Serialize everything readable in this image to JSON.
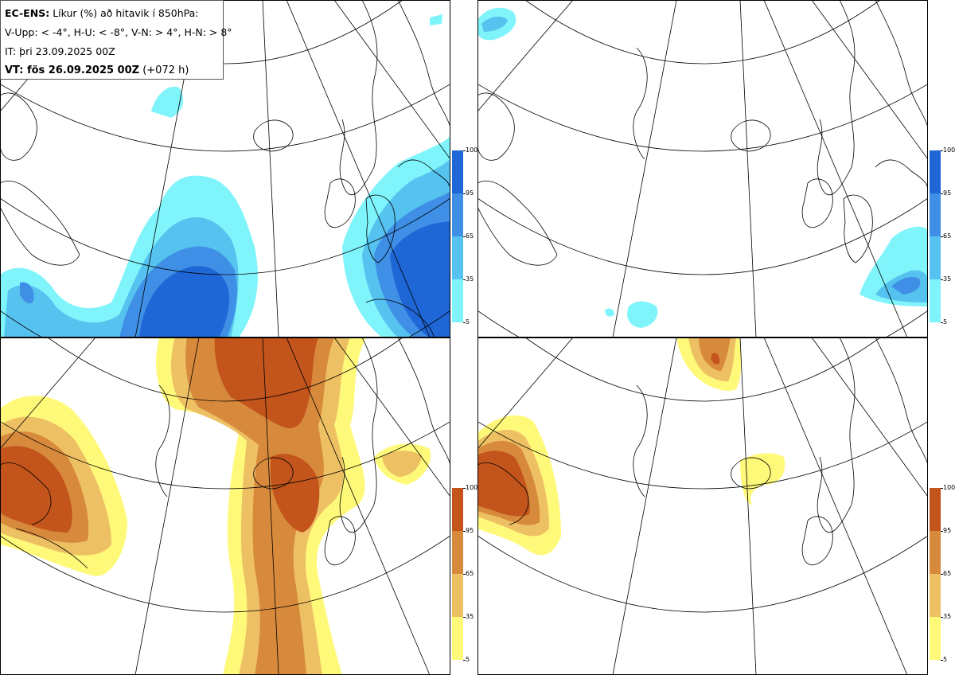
{
  "title": {
    "model": "EC-ENS:",
    "description": "Líkur (%) að hitavik í 850hPa:",
    "thresholds": "V-Upp: < -4°, H-U: < -8°, V-N: > 4°, H-N: > 8°",
    "init_time": "IT: þri 23.09.2025 00Z",
    "valid_label": "VT: fös 26.09.2025 00Z",
    "lead": "(+072 h)"
  },
  "colorbar_cold": {
    "labels": [
      "100",
      "95",
      "65",
      "35",
      "5"
    ],
    "colors": [
      "#1f66d6",
      "#3e8fe5",
      "#55c2ef",
      "#7ff4fb"
    ]
  },
  "colorbar_warm": {
    "labels": [
      "100",
      "95",
      "65",
      "35",
      "5"
    ],
    "colors": [
      "#c2541c",
      "#d88a3c",
      "#eec064",
      "#fff97a"
    ]
  },
  "panels": [
    {
      "id": "cold-minus4",
      "scheme": "cold"
    },
    {
      "id": "cold-minus8",
      "scheme": "cold"
    },
    {
      "id": "warm-plus4",
      "scheme": "warm"
    },
    {
      "id": "warm-plus8",
      "scheme": "warm"
    }
  ]
}
